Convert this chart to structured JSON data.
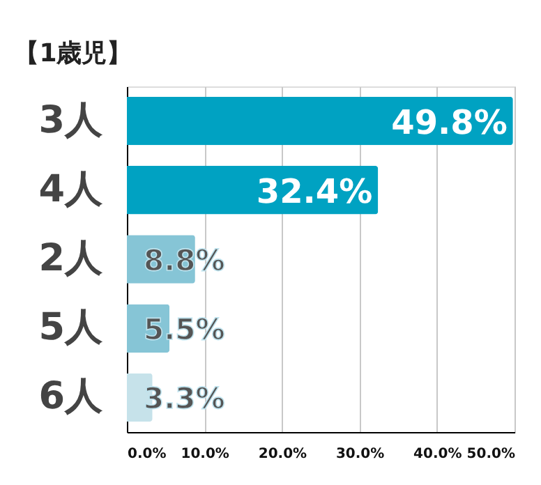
{
  "chart_data": {
    "type": "bar",
    "orientation": "horizontal",
    "title": "【1歳児】",
    "categories": [
      "3人",
      "4人",
      "2人",
      "5人",
      "6人"
    ],
    "values": [
      49.8,
      32.4,
      8.8,
      5.5,
      3.3
    ],
    "colors": [
      "#00a2c2",
      "#00a2c2",
      "#86c5d6",
      "#86c5d6",
      "#c6e2ea"
    ],
    "value_labels": [
      "49.8%",
      "32.4%",
      "8.8%",
      "5.5%",
      "3.3%"
    ],
    "xlim": [
      0,
      50
    ],
    "xticks": [
      {
        "value": 0,
        "label": "0.0%"
      },
      {
        "value": 10,
        "label": "10.0%"
      },
      {
        "value": 20,
        "label": "20.0%"
      },
      {
        "value": 30,
        "label": "30.0%"
      },
      {
        "value": 40,
        "label": "40.0%"
      },
      {
        "value": 50,
        "label": "50.0%"
      }
    ],
    "grid": "x"
  }
}
